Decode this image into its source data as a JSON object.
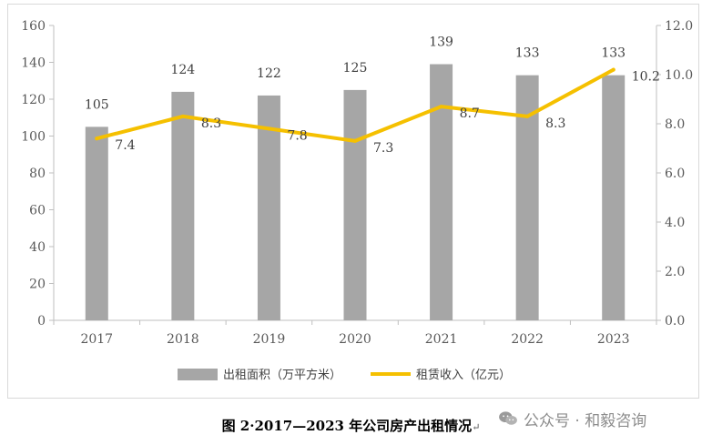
{
  "chart_data": {
    "type": "bar+line",
    "categories": [
      "2017",
      "2018",
      "2019",
      "2020",
      "2021",
      "2022",
      "2023"
    ],
    "series": [
      {
        "name": "出租面积（万平方米）",
        "kind": "bar",
        "axis": "left",
        "values": [
          105,
          124,
          122,
          125,
          139,
          133,
          133
        ],
        "labels": [
          "105",
          "124",
          "122",
          "125",
          "139",
          "133",
          "133"
        ],
        "color": "#a6a6a6"
      },
      {
        "name": "租赁收入（亿元）",
        "kind": "line",
        "axis": "right",
        "values": [
          7.4,
          8.3,
          7.8,
          7.3,
          8.7,
          8.3,
          10.2
        ],
        "labels": [
          "7.4",
          "8.3",
          "7.8",
          "7.3",
          "8.7",
          "8.3",
          "10.2"
        ],
        "color": "#f5c000"
      }
    ],
    "y_left": {
      "min": 0,
      "max": 160,
      "ticks": [
        "0",
        "20",
        "40",
        "60",
        "80",
        "100",
        "120",
        "140",
        "160"
      ]
    },
    "y_right": {
      "min": 0,
      "max": 12,
      "ticks": [
        "0.0",
        "2.0",
        "4.0",
        "6.0",
        "8.0",
        "10.0",
        "12.0"
      ]
    },
    "grid": false,
    "legend": "bottom",
    "title": ""
  },
  "caption": "图 2·2017—2023 年公司房产出租情况",
  "caption_mark": "↵",
  "watermark": {
    "text": "公众号 · 和毅咨询",
    "icon": "wechat-icon"
  },
  "colors": {
    "bar": "#a6a6a6",
    "line": "#f5c000",
    "axis": "#bfbfbf",
    "text": "#595959"
  }
}
